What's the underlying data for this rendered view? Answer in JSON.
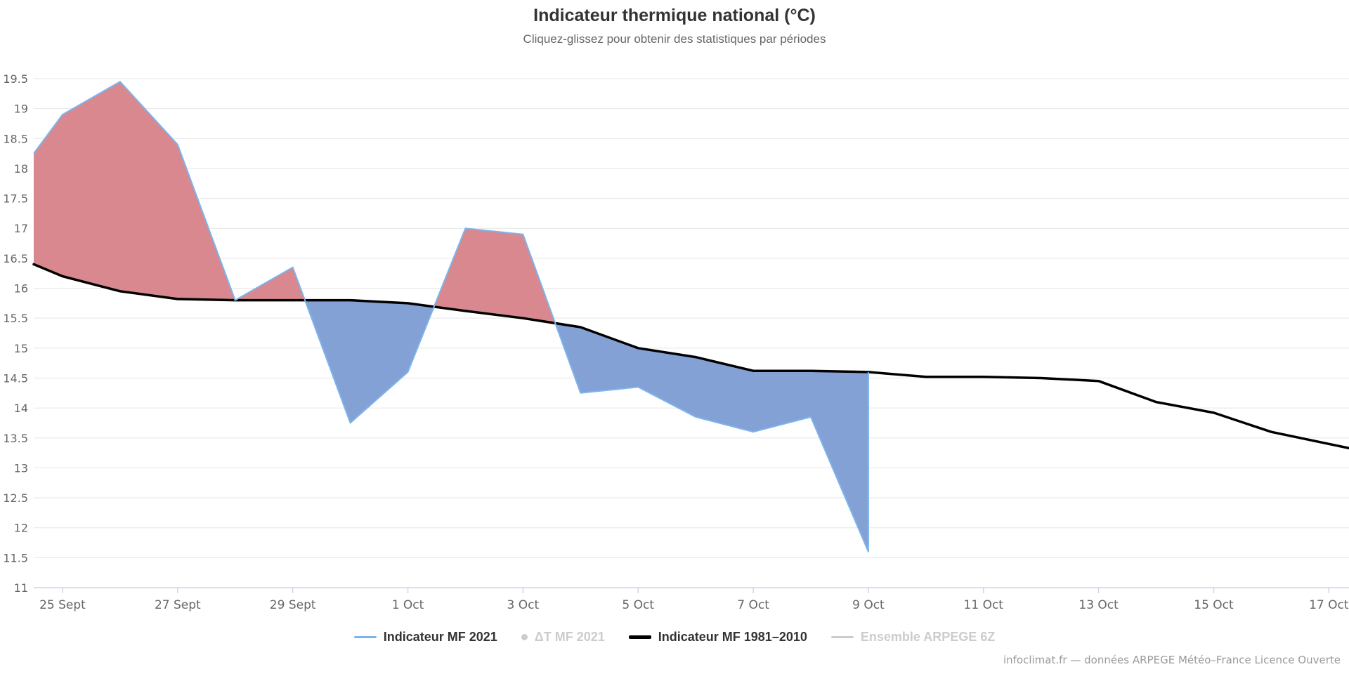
{
  "chart_data": {
    "type": "area",
    "title": "Indicateur thermique national (°C)",
    "subtitle": "Cliquez-glissez pour obtenir des statistiques par périodes",
    "credit": "infoclimat.fr — données ARPEGE Météo–France Licence Ouverte",
    "x_unit": "day offset, 0 = 25 Sept 2021",
    "xlim": [
      -0.5,
      22.35
    ],
    "ylim": [
      11,
      19.5
    ],
    "y_tick_step": 0.5,
    "y_tick_labels": [
      "11",
      "11.5",
      "12",
      "12.5",
      "13",
      "13.5",
      "14",
      "14.5",
      "15",
      "15.5",
      "16",
      "16.5",
      "17",
      "17.5",
      "18",
      "18.5",
      "19",
      "19.5"
    ],
    "x_tick_positions": [
      0,
      2,
      4,
      6,
      8,
      10,
      12,
      14,
      16,
      18,
      20,
      22
    ],
    "x_tick_labels": [
      "25 Sept",
      "27 Sept",
      "29 Sept",
      "1 Oct",
      "3 Oct",
      "5 Oct",
      "7 Oct",
      "9 Oct",
      "11 Oct",
      "13 Oct",
      "15 Oct",
      "17 Oct"
    ],
    "grid": "horizontal-only",
    "legend_position": "bottom-center",
    "series": [
      {
        "name": "Indicateur MF 2021",
        "type": "area-vs-reference",
        "color": "#7cb5ec",
        "area_above_color": "#d8888e",
        "area_below_color": "#84a1d6",
        "compare_to": "Indicateur MF 1981–2010",
        "x": [
          -0.5,
          0,
          1,
          2,
          3,
          4,
          5,
          6,
          7,
          8,
          9,
          10,
          11,
          12,
          13,
          14
        ],
        "values": [
          18.25,
          18.9,
          19.45,
          18.4,
          15.8,
          16.35,
          13.75,
          14.6,
          17.0,
          16.9,
          14.25,
          14.35,
          13.85,
          13.6,
          13.85,
          11.6
        ]
      },
      {
        "name": "ΔT MF 2021",
        "type": "scatter",
        "hidden": true,
        "values": []
      },
      {
        "name": "Indicateur MF 1981–2010",
        "type": "line",
        "color": "#000000",
        "x": [
          -0.5,
          0,
          1,
          2,
          3,
          4,
          5,
          6,
          7,
          8,
          9,
          10,
          11,
          12,
          13,
          14,
          15,
          16,
          17,
          18,
          19,
          20,
          21,
          22,
          22.35
        ],
        "values": [
          16.4,
          16.2,
          15.95,
          15.82,
          15.8,
          15.8,
          15.8,
          15.75,
          15.62,
          15.5,
          15.35,
          15.0,
          14.85,
          14.62,
          14.62,
          14.6,
          14.52,
          14.52,
          14.5,
          14.45,
          14.1,
          13.92,
          13.6,
          13.4,
          13.33
        ]
      },
      {
        "name": "Ensemble ARPEGE 6Z",
        "type": "line",
        "hidden": true,
        "values": []
      }
    ],
    "legend": [
      {
        "label": "Indicateur MF 2021",
        "marker": "line",
        "color": "#7cb5ec",
        "enabled": true
      },
      {
        "label": "ΔT MF 2021",
        "marker": "dot",
        "color": "#cccccc",
        "enabled": false
      },
      {
        "label": "Indicateur MF 1981–2010",
        "marker": "line-thick",
        "color": "#000000",
        "enabled": true
      },
      {
        "label": "Ensemble ARPEGE 6Z",
        "marker": "line",
        "color": "#cccccc",
        "enabled": false
      }
    ],
    "theme": {
      "title_color": "#333333",
      "text_color": "#666666",
      "grid_color": "#e6e6e6",
      "axis_color": "#ccd6eb",
      "disabled_color": "#cccccc",
      "credit_color": "#999999",
      "background": "#ffffff"
    }
  }
}
